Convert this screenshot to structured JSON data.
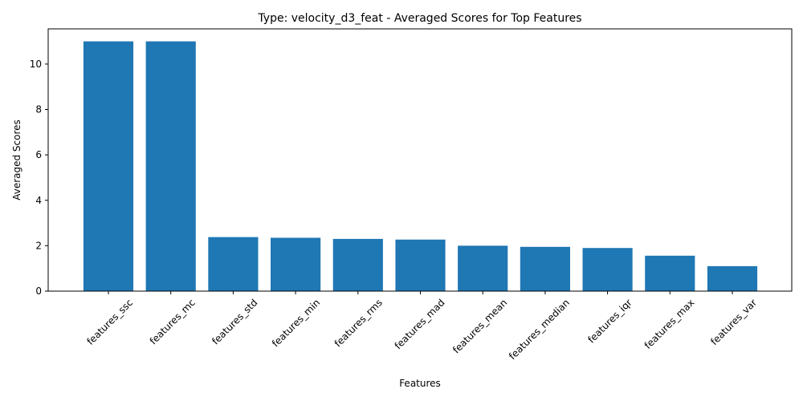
{
  "chart_data": {
    "type": "bar",
    "title": "Type: velocity_d3_feat - Averaged Scores for Top Features",
    "xlabel": "Features",
    "ylabel": "Averaged Scores",
    "categories": [
      "features_ssc",
      "features_mc",
      "features_std",
      "features_min",
      "features_rms",
      "features_mad",
      "features_mean",
      "features_median",
      "features_iqr",
      "features_max",
      "features_var"
    ],
    "values": [
      11.0,
      11.0,
      2.38,
      2.35,
      2.3,
      2.27,
      2.0,
      1.95,
      1.9,
      1.56,
      1.1
    ],
    "ylim": [
      0,
      11.55
    ],
    "yticks": [
      0,
      2,
      4,
      6,
      8,
      10
    ],
    "grid": false,
    "bar_color": "#1f77b4"
  }
}
